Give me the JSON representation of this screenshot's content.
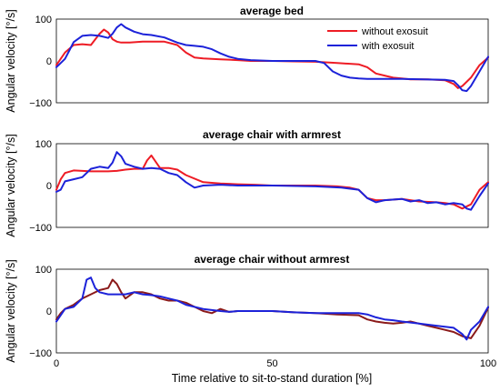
{
  "chart_data": [
    {
      "type": "line",
      "title": "average bed",
      "ylabel": "Angular velocity [°/s]",
      "xlabel": "",
      "xlim": [
        0,
        100
      ],
      "ylim": [
        -100,
        100
      ],
      "yticks": [
        "100",
        "0",
        "−100"
      ],
      "xticks": [],
      "legend": {
        "placement": "top-right",
        "entries": [
          "without exosuit",
          "with exosuit"
        ]
      },
      "series": [
        {
          "name": "without exosuit",
          "color": "#ee1c25",
          "x": [
            0,
            2,
            4,
            6,
            8,
            10,
            11,
            12,
            13,
            14,
            15,
            17,
            20,
            25,
            28,
            30,
            32,
            34,
            36,
            38,
            40,
            42,
            45,
            50,
            55,
            60,
            65,
            70,
            72,
            74,
            76,
            78,
            80,
            82,
            84,
            86,
            88,
            90,
            92,
            93,
            94,
            96,
            98,
            100
          ],
          "y": [
            -10,
            20,
            38,
            40,
            38,
            65,
            75,
            68,
            52,
            46,
            44,
            44,
            46,
            46,
            38,
            20,
            8,
            6,
            5,
            4,
            3,
            2,
            0,
            0,
            -1,
            -2,
            -5,
            -8,
            -15,
            -30,
            -35,
            -40,
            -42,
            -44,
            -44,
            -44,
            -45,
            -46,
            -55,
            -65,
            -60,
            -40,
            -10,
            8
          ]
        },
        {
          "name": "with exosuit",
          "color": "#1c22d9",
          "x": [
            0,
            1,
            2,
            3,
            4,
            6,
            8,
            10,
            12,
            13,
            14,
            15,
            16,
            18,
            20,
            22,
            25,
            28,
            30,
            32,
            34,
            36,
            38,
            40,
            42,
            45,
            50,
            55,
            60,
            62,
            64,
            66,
            68,
            70,
            72,
            75,
            80,
            85,
            90,
            92,
            93,
            94,
            95,
            96,
            98,
            100
          ],
          "y": [
            -15,
            -5,
            5,
            25,
            45,
            60,
            62,
            60,
            55,
            65,
            80,
            88,
            80,
            70,
            64,
            62,
            56,
            44,
            38,
            36,
            34,
            28,
            18,
            10,
            5,
            2,
            0,
            0,
            0,
            -5,
            -25,
            -35,
            -40,
            -42,
            -43,
            -43,
            -43,
            -44,
            -45,
            -48,
            -58,
            -70,
            -72,
            -60,
            -25,
            10
          ]
        }
      ]
    },
    {
      "type": "line",
      "title": "average chair with armrest",
      "ylabel": "Angular velocity [°/s]",
      "xlabel": "",
      "xlim": [
        0,
        100
      ],
      "ylim": [
        -100,
        100
      ],
      "yticks": [
        "100",
        "0",
        "−100"
      ],
      "xticks": [],
      "series": [
        {
          "name": "",
          "color": "#ee1c25",
          "x": [
            0,
            1,
            2,
            4,
            6,
            8,
            10,
            12,
            14,
            16,
            18,
            20,
            21,
            22,
            24,
            26,
            28,
            30,
            34,
            38,
            42,
            46,
            50,
            60,
            65,
            68,
            70,
            72,
            74,
            76,
            80,
            84,
            88,
            90,
            92,
            94,
            96,
            98,
            100
          ],
          "y": [
            -10,
            15,
            30,
            36,
            35,
            34,
            34,
            34,
            35,
            38,
            40,
            40,
            60,
            72,
            42,
            42,
            38,
            25,
            8,
            5,
            3,
            2,
            0,
            0,
            -2,
            -5,
            -10,
            -30,
            -35,
            -35,
            -32,
            -38,
            -40,
            -42,
            -45,
            -55,
            -45,
            -10,
            8
          ]
        },
        {
          "name": "",
          "color": "#1c22d9",
          "x": [
            0,
            1,
            2,
            4,
            6,
            8,
            10,
            12,
            13,
            14,
            15,
            16,
            18,
            20,
            22,
            24,
            26,
            28,
            30,
            32,
            34,
            38,
            42,
            46,
            50,
            60,
            66,
            70,
            72,
            74,
            76,
            80,
            82,
            84,
            86,
            88,
            90,
            92,
            94,
            95,
            96,
            98,
            100
          ],
          "y": [
            -15,
            -10,
            10,
            15,
            20,
            40,
            45,
            42,
            55,
            80,
            70,
            52,
            45,
            40,
            42,
            40,
            30,
            25,
            8,
            -5,
            0,
            2,
            0,
            0,
            0,
            -2,
            -5,
            -10,
            -30,
            -40,
            -35,
            -32,
            -38,
            -35,
            -42,
            -40,
            -45,
            -42,
            -45,
            -55,
            -58,
            -25,
            5
          ]
        }
      ]
    },
    {
      "type": "line",
      "title": "average chair without armrest",
      "ylabel": "Angular velocity [°/s]",
      "xlabel": "Time relative to sit-to-stand duration [%]",
      "xlim": [
        0,
        100
      ],
      "ylim": [
        -100,
        100
      ],
      "yticks": [
        "100",
        "0",
        "−100"
      ],
      "xticks": [
        "0",
        "50",
        "100"
      ],
      "series": [
        {
          "name": "",
          "color": "#8b1a1a",
          "x": [
            0,
            1,
            2,
            4,
            6,
            8,
            10,
            12,
            13,
            14,
            15,
            16,
            18,
            20,
            22,
            24,
            26,
            28,
            30,
            32,
            34,
            36,
            38,
            40,
            42,
            44,
            46,
            50,
            55,
            60,
            65,
            70,
            72,
            74,
            76,
            78,
            80,
            82,
            84,
            86,
            88,
            90,
            92,
            94,
            96,
            98,
            100
          ],
          "y": [
            -20,
            -5,
            5,
            15,
            30,
            40,
            50,
            55,
            75,
            65,
            45,
            30,
            45,
            45,
            40,
            30,
            25,
            25,
            20,
            10,
            0,
            -5,
            5,
            -2,
            0,
            0,
            0,
            0,
            -3,
            -5,
            -8,
            -10,
            -20,
            -25,
            -28,
            -30,
            -28,
            -25,
            -30,
            -35,
            -40,
            -45,
            -50,
            -60,
            -65,
            -35,
            8
          ]
        },
        {
          "name": "",
          "color": "#1c22d9",
          "x": [
            0,
            1,
            2,
            4,
            6,
            7,
            8,
            9,
            10,
            12,
            14,
            16,
            18,
            20,
            22,
            24,
            26,
            28,
            30,
            34,
            38,
            40,
            42,
            44,
            50,
            55,
            60,
            65,
            70,
            72,
            74,
            76,
            78,
            80,
            84,
            88,
            92,
            94,
            95,
            96,
            98,
            100
          ],
          "y": [
            -25,
            -10,
            5,
            10,
            30,
            75,
            80,
            55,
            45,
            40,
            40,
            40,
            45,
            40,
            38,
            35,
            30,
            25,
            15,
            5,
            0,
            -2,
            0,
            0,
            0,
            -3,
            -5,
            -5,
            -5,
            -8,
            -15,
            -20,
            -22,
            -25,
            -30,
            -35,
            -40,
            -55,
            -68,
            -45,
            -25,
            10
          ]
        }
      ]
    }
  ]
}
